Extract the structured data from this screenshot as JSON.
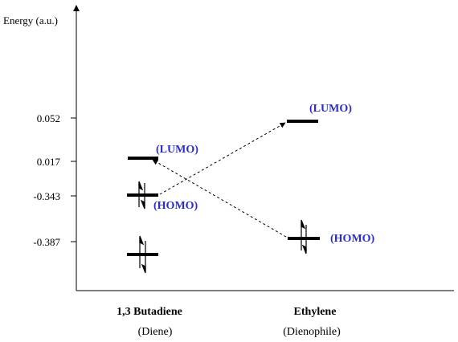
{
  "axis": {
    "y_label": "Energy (a.u.)"
  },
  "ticks": [
    "0.052",
    "0.017",
    "-0.343",
    "-0.387"
  ],
  "molecules": [
    {
      "name": "1,3 Butadiene",
      "role": "(Diene)"
    },
    {
      "name": "Ethylene",
      "role": "(Dienophile)"
    }
  ],
  "labels": {
    "butadiene_lumo": "(LUMO)",
    "butadiene_homo": "(HOMO)",
    "ethylene_lumo": "(LUMO)",
    "ethylene_homo": "(HOMO)"
  },
  "colors": {
    "label": "#2b2bd6",
    "line": "#000000"
  },
  "energies": {
    "butadiene_lumo": 0.017,
    "butadiene_homo": -0.343,
    "butadiene_lower_occupied": -0.387,
    "ethylene_lumo": 0.052,
    "ethylene_homo": -0.387
  }
}
